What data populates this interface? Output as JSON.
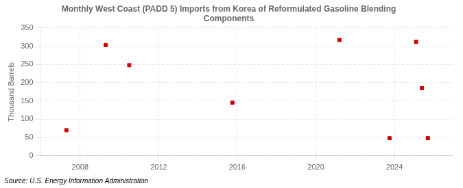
{
  "chart_data": {
    "type": "scatter",
    "title": "Monthly West Coast (PADD 5) Imports from Korea of Reformulated Gasoline Blending\nComponents",
    "ylabel": "Thousand Barrels",
    "annotation": "Source: U.S. Energy Information Administration",
    "x": [
      2007.3,
      2009.3,
      2010.5,
      2015.75,
      2021.2,
      2023.75,
      2025.1,
      2025.4,
      2025.7
    ],
    "values": [
      70,
      303,
      248,
      145,
      317,
      48,
      312,
      185,
      48
    ],
    "color": "#cc0000",
    "marker": "square",
    "xlim": [
      2006.0,
      2027.0
    ],
    "ylim": [
      0,
      350
    ],
    "xticks": [
      2008,
      2012,
      2016,
      2020,
      2024
    ],
    "yticks": [
      0,
      50,
      100,
      150,
      200,
      250,
      300,
      350
    ],
    "grid": true
  }
}
